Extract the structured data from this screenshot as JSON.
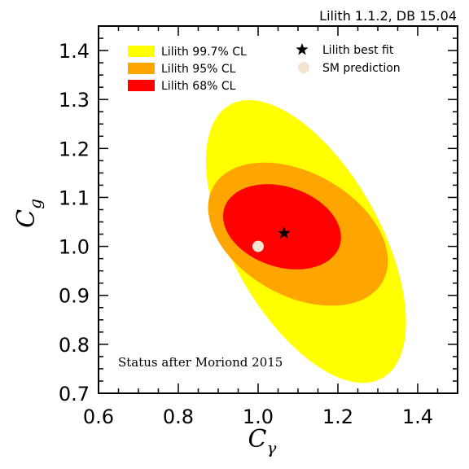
{
  "chart_data": {
    "type": "contour",
    "header": "Lilith 1.1.2, DB 15.04",
    "annotation": "Status after Moriond 2015",
    "xlabel": {
      "base": "C",
      "sub": "γ"
    },
    "ylabel": {
      "base": "C",
      "sub": "g"
    },
    "xlim": [
      0.6,
      1.5
    ],
    "ylim": [
      0.7,
      1.45
    ],
    "x_ticks": [
      0.6,
      0.8,
      1.0,
      1.2,
      1.4
    ],
    "x_tick_labels": [
      "0.6",
      "0.8",
      "1.0",
      "1.2",
      "1.4"
    ],
    "y_ticks": [
      0.7,
      0.8,
      0.9,
      1.0,
      1.1,
      1.2,
      1.3,
      1.4
    ],
    "y_tick_labels": [
      "0.7",
      "0.8",
      "0.9",
      "1.0",
      "1.1",
      "1.2",
      "1.3",
      "1.4"
    ],
    "x_minor_step": 0.05,
    "y_minor_step": 0.025,
    "regions": [
      {
        "name": "Lilith 99.7% CL",
        "color": "#ffff00",
        "center": [
          1.12,
          1.01
        ],
        "semi_major": 0.34,
        "semi_minor": 0.175,
        "angle_deg": -52,
        "offset": [
          0.0,
          0.0
        ]
      },
      {
        "name": "Lilith 95% CL",
        "color": "#ffa500",
        "center": [
          1.1,
          1.025
        ],
        "semi_major": 0.235,
        "semi_minor": 0.13,
        "angle_deg": -20,
        "offset": [
          0.0,
          0.0
        ]
      },
      {
        "name": "Lilith 68% CL",
        "color": "#ff0000",
        "center": [
          1.06,
          1.04
        ],
        "semi_major": 0.15,
        "semi_minor": 0.083,
        "angle_deg": -12,
        "offset": [
          0.0,
          0.0
        ]
      }
    ],
    "best_fit": {
      "name": "Lilith best fit",
      "x": 1.065,
      "y": 1.027
    },
    "sm_prediction": {
      "name": "SM prediction",
      "x": 1.0,
      "y": 1.0,
      "color": "#f5e4d2"
    },
    "legend": {
      "left": [
        "Lilith 99.7% CL",
        "Lilith 95% CL",
        "Lilith 68% CL"
      ],
      "right": [
        "Lilith best fit",
        "SM prediction"
      ],
      "placement": "top"
    }
  }
}
